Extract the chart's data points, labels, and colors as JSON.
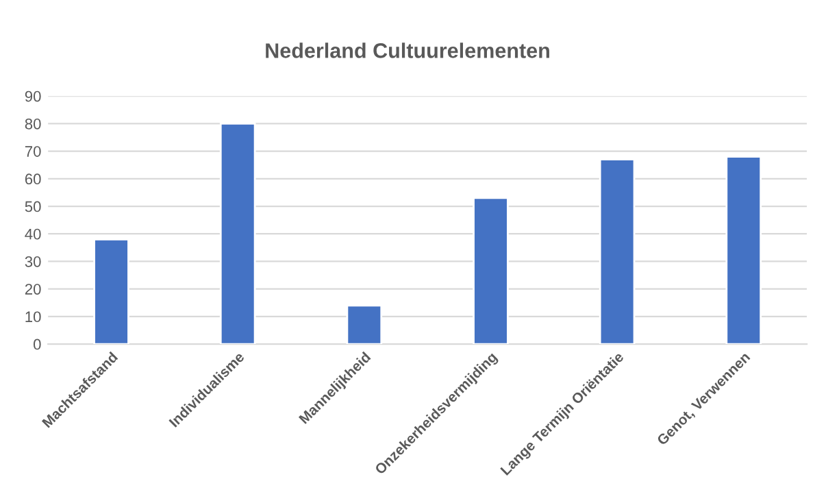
{
  "chart_data": {
    "type": "bar",
    "title": "Nederland Cultuurelementen",
    "categories": [
      "Machtsafstand",
      "Individualisme",
      "Mannelijkheid",
      "Onzekerheidsvermijding",
      "Lange Termijn Oriëntatie",
      "Genot, Verwennen"
    ],
    "values": [
      38,
      80,
      14,
      53,
      67,
      68
    ],
    "color": "#4472c4",
    "ylim": [
      0,
      90
    ],
    "yticks": [
      0,
      10,
      20,
      30,
      40,
      50,
      60,
      70,
      80,
      90
    ],
    "grid": "y",
    "legend": false
  }
}
